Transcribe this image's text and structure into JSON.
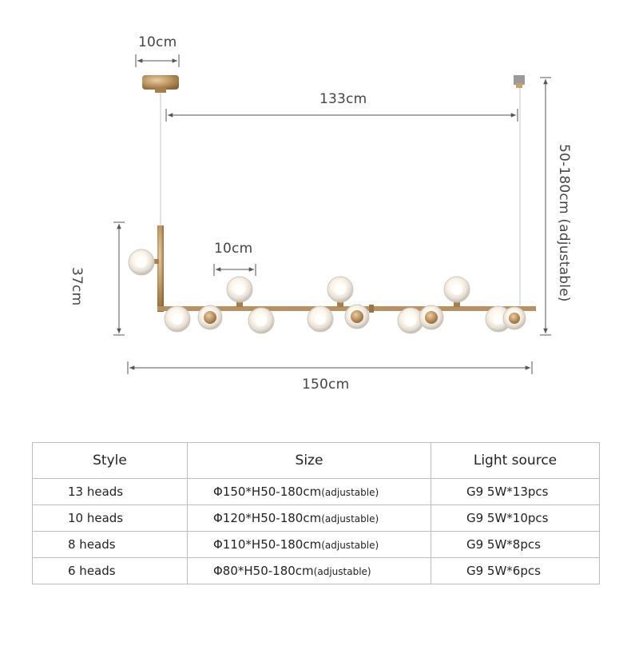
{
  "dimensions": {
    "canopy_width": "10cm",
    "cord_span": "133cm",
    "height_range": "50-180cm (adjustable)",
    "arm_height": "37cm",
    "globe_width": "10cm",
    "total_length": "150cm"
  },
  "colors": {
    "brass": "#b89160",
    "line": "#555555",
    "glass": "#e8e4df"
  },
  "table": {
    "headers": [
      "Style",
      "Size",
      "Light source"
    ],
    "rows": [
      {
        "style": "13 heads",
        "size": "Φ150*H50-180cm",
        "size_note": "(adjustable)",
        "light": "G9 5W*13pcs"
      },
      {
        "style": "10 heads",
        "size": "Φ120*H50-180cm",
        "size_note": "(adjustable)",
        "light": "G9 5W*10pcs"
      },
      {
        "style": "8 heads",
        "size": "Φ110*H50-180cm",
        "size_note": "(adjustable)",
        "light": "G9 5W*8pcs"
      },
      {
        "style": "6 heads",
        "size": "Φ80*H50-180cm",
        "size_note": "(adjustable)",
        "light": "G9 5W*6pcs"
      }
    ]
  }
}
